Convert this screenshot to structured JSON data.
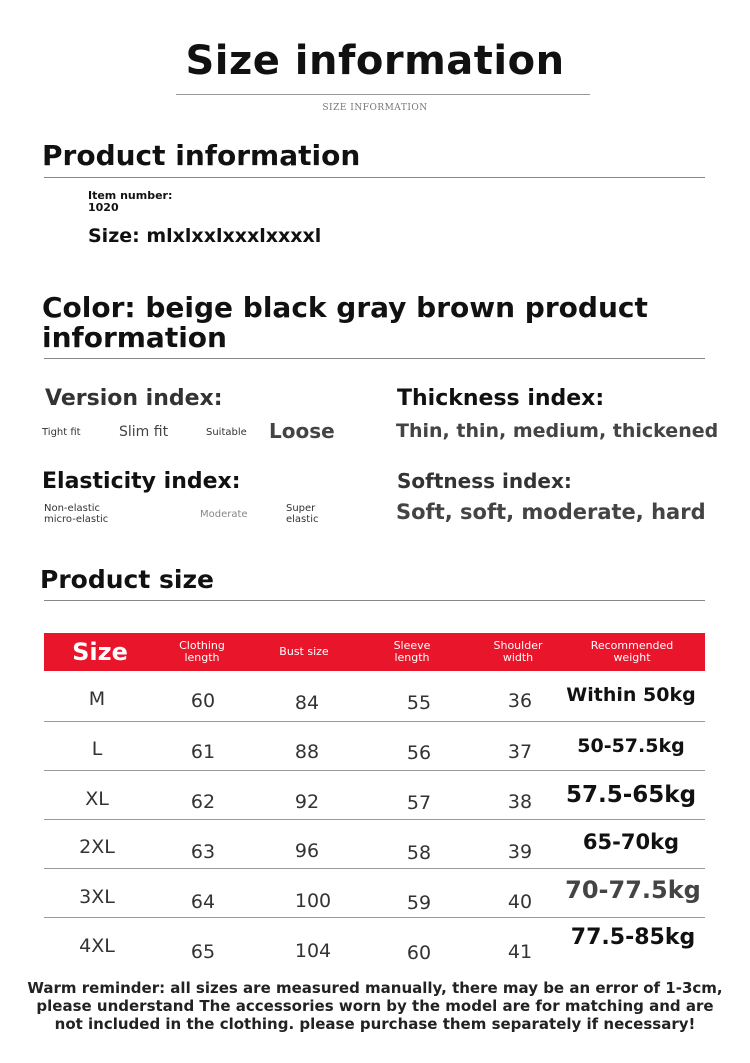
{
  "header": {
    "title": "Size information",
    "subtitle": "SIZE INFORMATION"
  },
  "product_info": {
    "heading": "Product information",
    "item_number_label": "Item number:",
    "item_number": "1020",
    "size_line": "Size: mlxlxxlxxxlxxxxl"
  },
  "color": {
    "line1": "Color: beige black gray brown product",
    "line2": "information"
  },
  "indices": {
    "version": {
      "title": "Version index:",
      "opt1": "Tight fit",
      "opt2": "Slim fit",
      "opt3": "Suitable",
      "selected": "Loose"
    },
    "thickness": {
      "title": "Thickness index:",
      "values": "Thin, thin, medium, thickened"
    },
    "elasticity": {
      "title": "Elasticity index:",
      "opt1_a": "Non-elastic",
      "opt1_b": "micro-elastic",
      "opt2": "Moderate",
      "opt3_a": "Super",
      "opt3_b": "elastic"
    },
    "softness": {
      "title": "Softness index:",
      "values": "Soft, soft, moderate, hard"
    }
  },
  "product_size": {
    "heading": "Product size",
    "columns": {
      "size": "Size",
      "clothing_length_a": "Clothing",
      "clothing_length_b": "length",
      "bust": "Bust size",
      "sleeve_a": "Sleeve",
      "sleeve_b": "length",
      "shoulder_a": "Shoulder",
      "shoulder_b": "width",
      "weight_a": "Recommended",
      "weight_b": "weight"
    },
    "rows": [
      {
        "size": "M",
        "length": "60",
        "bust": "84",
        "sleeve": "55",
        "shoulder": "36",
        "weight": "Within 50kg"
      },
      {
        "size": "L",
        "length": "61",
        "bust": "88",
        "sleeve": "56",
        "shoulder": "37",
        "weight": "50-57.5kg"
      },
      {
        "size": "XL",
        "length": "62",
        "bust": "92",
        "sleeve": "57",
        "shoulder": "38",
        "weight": "57.5-65kg"
      },
      {
        "size": "2XL",
        "length": "63",
        "bust": "96",
        "sleeve": "58",
        "shoulder": "39",
        "weight": "65-70kg"
      },
      {
        "size": "3XL",
        "length": "64",
        "bust": "100",
        "sleeve": "59",
        "shoulder": "40",
        "weight": "70-77.5kg"
      },
      {
        "size": "4XL",
        "length": "65",
        "bust": "104",
        "sleeve": "60",
        "shoulder": "41",
        "weight": "77.5-85kg"
      }
    ]
  },
  "reminder": {
    "line1": "Warm reminder: all sizes are measured manually, there may be an error of 1-3cm,",
    "line2": "please understand The accessories worn by the model are for matching and are",
    "line3": "not included in the clothing. please purchase them separately if necessary!"
  },
  "colors": {
    "header_red": "#e8152b"
  }
}
